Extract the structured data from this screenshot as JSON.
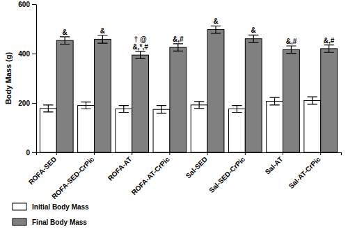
{
  "chart_data": {
    "type": "bar",
    "y_label": "Body Mass (g)",
    "categories": [
      "ROFA-SED",
      "ROFA-SED-CrPic",
      "ROFA-AT",
      "ROFA-AT-CrPic",
      "Sal-SED",
      "Sal-SED-CrPic",
      "Sal-AT",
      "Sal-AT-CrPic"
    ],
    "series": [
      {
        "name": "Initial Body Mass",
        "color": "#ffffff",
        "values": [
          178,
          190,
          176,
          174,
          192,
          176,
          207,
          210
        ],
        "errors": [
          14,
          14,
          14,
          16,
          14,
          14,
          15,
          15
        ]
      },
      {
        "name": "Final Body Mass",
        "color": "#808080",
        "values": [
          453,
          458,
          394,
          425,
          497,
          460,
          416,
          420
        ],
        "errors": [
          15,
          16,
          15,
          15,
          15,
          15,
          15,
          15
        ]
      }
    ],
    "annotations": [
      [
        "&"
      ],
      [
        "&"
      ],
      [
        "† @",
        "&,*,#"
      ],
      [
        "&,#"
      ],
      [
        "&"
      ],
      [
        "&"
      ],
      [
        "&,#"
      ],
      [
        "&,#"
      ]
    ],
    "ylim": [
      0,
      600
    ],
    "yticks": [
      0,
      200,
      400,
      600
    ],
    "legend": "bottom"
  }
}
